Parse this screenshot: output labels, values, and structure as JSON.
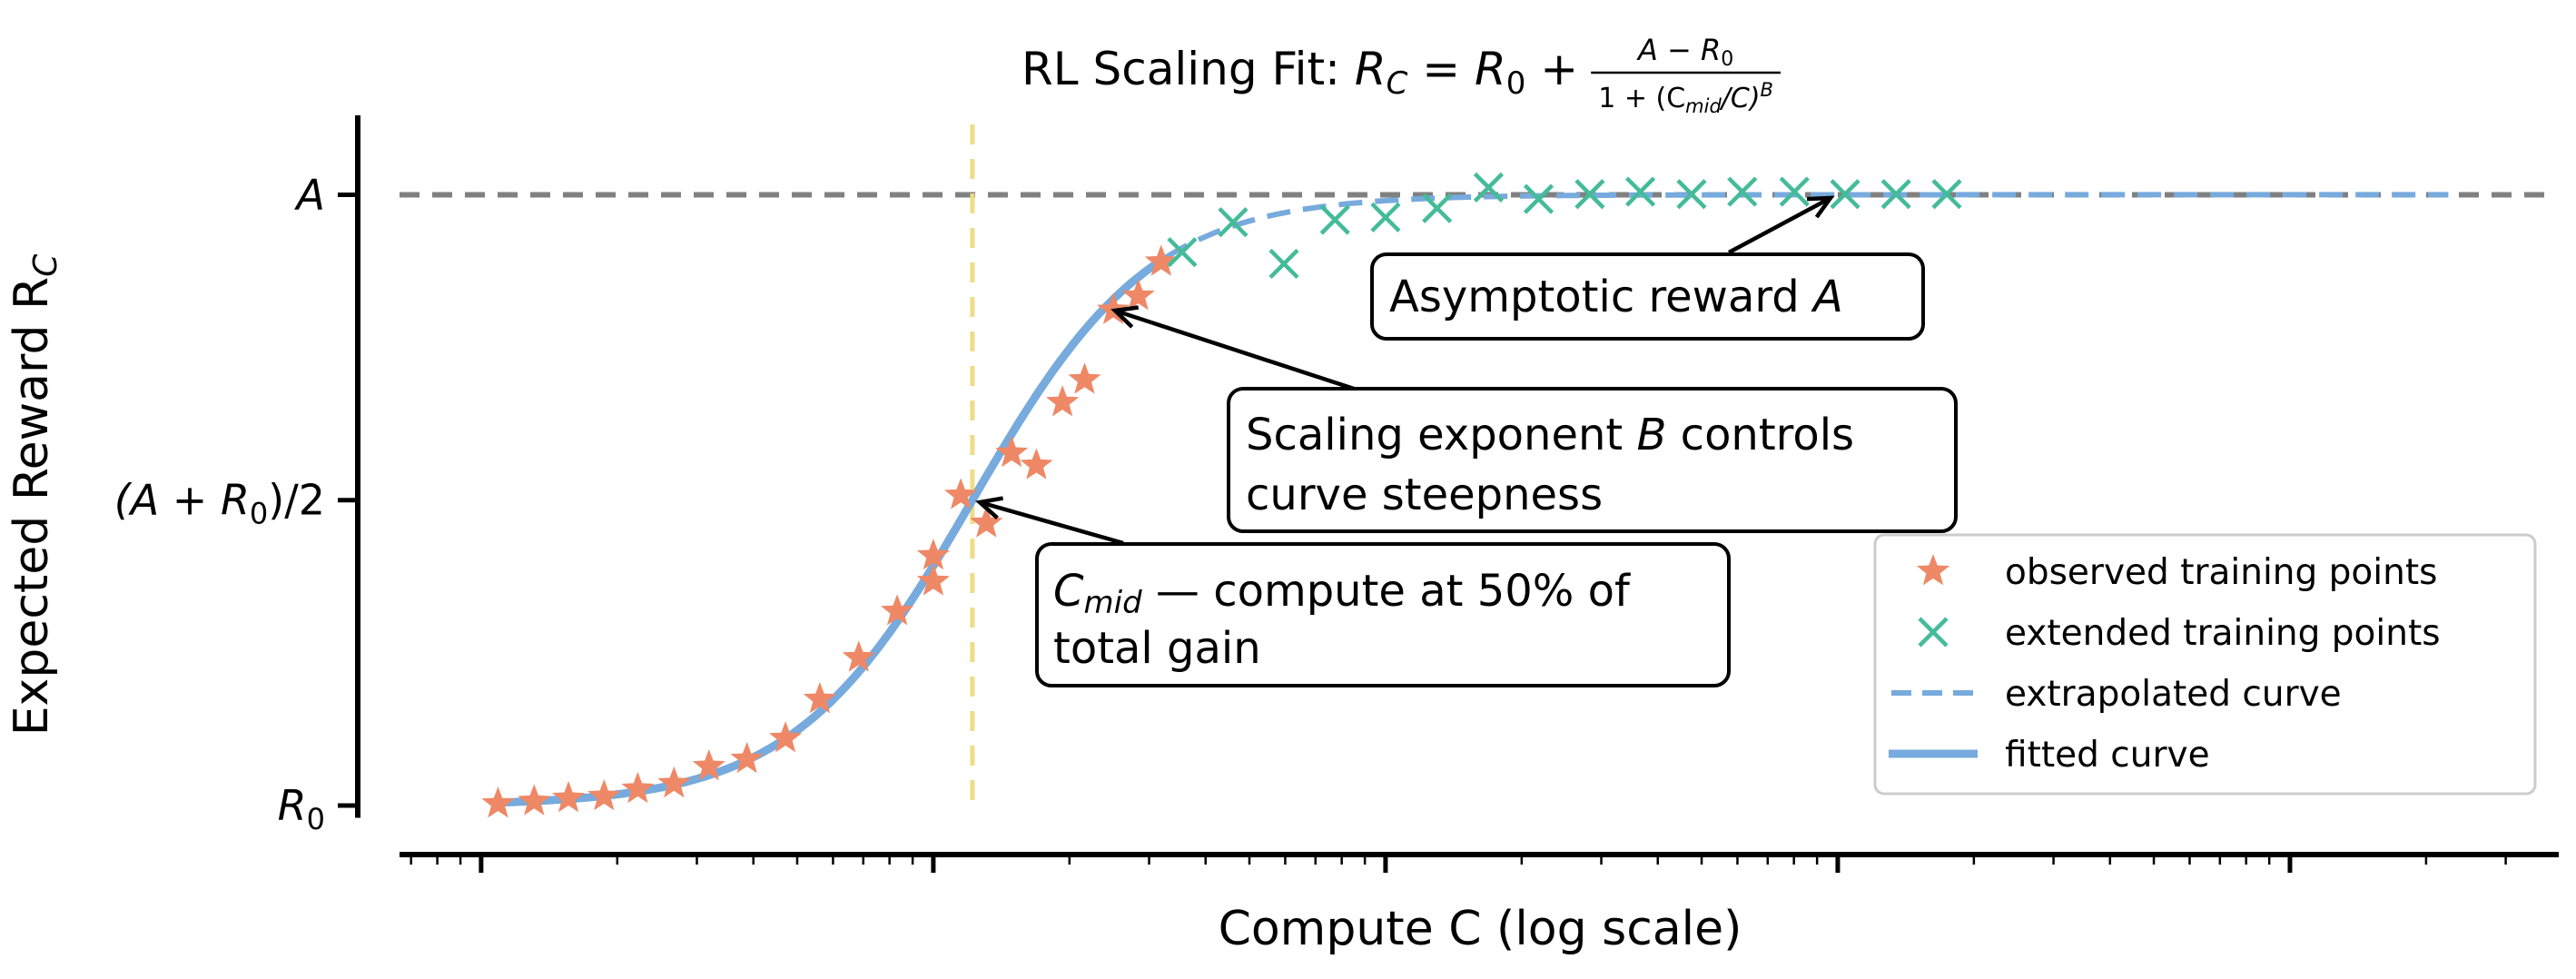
{
  "chart_data": {
    "type": "scatter",
    "title": {
      "prefix": "RL Scaling Fit: ",
      "lhs": "R",
      "lhs_sub": "C",
      "eq": " = ",
      "r0": "R",
      "r0_sub": "0",
      "plus": " + ",
      "num": "A − R",
      "num_sub": "0",
      "den_a": "1 + (C",
      "den_sub": "mid",
      "den_b": "/C)",
      "den_sup": "B"
    },
    "xlabel": "Compute  C  (log scale)",
    "ylabel": {
      "text": "Expected Reward  R",
      "sub": "C"
    },
    "x_scale": "log",
    "xlim": [
      0.66,
      39300
    ],
    "ylim": [
      -0.02,
      1.13
    ],
    "x_major_ticks": [
      1,
      10,
      100,
      1000,
      10000
    ],
    "x_tick_labels_shown": false,
    "y_ticks": [
      {
        "value": 0,
        "label": "R",
        "sub": "0"
      },
      {
        "value": 0.5,
        "label": "(A + R",
        "sub": "0",
        "tail": ")/2"
      },
      {
        "value": 1,
        "label": "A",
        "sub": ""
      }
    ],
    "grid": false,
    "series": [
      {
        "name": "observed training points",
        "kind": "scatter",
        "marker": "star",
        "color": "#EE8866",
        "x": [
          1.09,
          1.31,
          1.56,
          1.87,
          2.22,
          2.67,
          3.19,
          3.87,
          4.71,
          5.61,
          6.84,
          8.32,
          10.0,
          10.0,
          11.5,
          13.1,
          14.9,
          16.9,
          19.3,
          21.6,
          25.0,
          28.4,
          31.9
        ],
        "y": [
          0.003,
          0.007,
          0.012,
          0.015,
          0.027,
          0.036,
          0.064,
          0.076,
          0.11,
          0.174,
          0.242,
          0.318,
          0.367,
          0.409,
          0.508,
          0.462,
          0.577,
          0.557,
          0.66,
          0.697,
          0.811,
          0.834,
          0.89
        ]
      },
      {
        "name": "extended training points",
        "kind": "scatter",
        "marker": "x",
        "color": "#44BB99",
        "x": [
          35.5,
          46.0,
          59.6,
          77.3,
          100,
          130,
          169,
          218,
          283,
          366,
          475,
          615,
          802,
          1038,
          1346,
          1742
        ],
        "y": [
          0.906,
          0.955,
          0.887,
          0.959,
          0.963,
          0.978,
          1.012,
          0.993,
          1.001,
          1.005,
          1.001,
          1.005,
          1.005,
          1.001,
          1.001,
          1.001
        ]
      },
      {
        "name": "extrapolated curve",
        "kind": "line",
        "style": "dashed",
        "color": "#77AADD",
        "x_range": [
          32.8,
          22400
        ]
      },
      {
        "name": "fitted curve",
        "kind": "line",
        "style": "solid",
        "color": "#77AADD",
        "x_range": [
          1.09,
          32.8
        ]
      }
    ],
    "fit": {
      "R0": 0,
      "A": 1,
      "C_mid": 12.2,
      "B": 2.2
    },
    "reference_lines": [
      {
        "type": "horizontal",
        "y": 1,
        "style": "dashed",
        "color": "#808080"
      },
      {
        "type": "vertical",
        "x": 12.2,
        "style": "dashed",
        "color": "#EEDD88"
      }
    ],
    "annotations": [
      {
        "id": "asymptote",
        "lines": [
          "Asymptotic reward A"
        ],
        "target": [
          1000,
          1.0
        ]
      },
      {
        "id": "steepness",
        "lines": [
          "Scaling exponent B controls",
          " curve steepness"
        ],
        "target": [
          21.6,
          0.811
        ]
      },
      {
        "id": "cmid",
        "lines_cmid": {
          "c": "C",
          "sub": "mid",
          "rest": " — compute at 50% of"
        },
        "lines": [
          "total gain"
        ],
        "target": [
          12.2,
          0.5
        ]
      }
    ],
    "legend": {
      "placement": "lower-right",
      "entries": [
        "observed training points",
        "extended training points",
        "extrapolated curve",
        "fitted curve"
      ]
    }
  }
}
